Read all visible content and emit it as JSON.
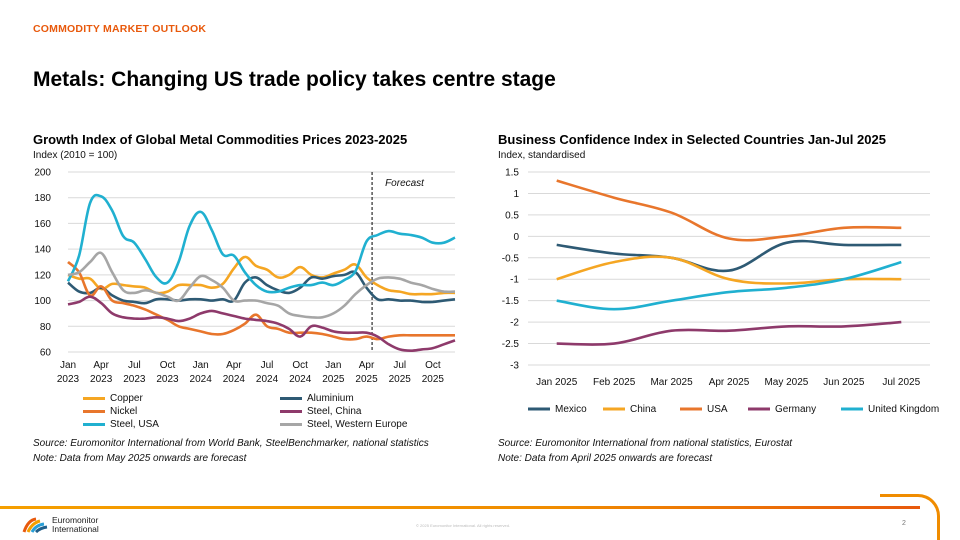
{
  "header": {
    "kicker": "COMMODITY MARKET OUTLOOK",
    "title": "Metals: Changing US trade policy takes centre stage"
  },
  "left_chart": {
    "title": "Growth Index of Global Metal Commodities Prices 2023-2025",
    "subtitle": "Index (2010 = 100)",
    "forecast_label": "Forecast",
    "source": "Source: Euromonitor International from World Bank, SteelBenchmarker, national statistics",
    "note": "Note: Data from May 2025 onwards are forecast"
  },
  "right_chart": {
    "title": "Business Confidence Index in Selected Countries Jan-Jul 2025",
    "subtitle": "Index, standardised",
    "source": "Source: Euromonitor International from national statistics, Eurostat",
    "note": "Note: Data from April 2025 onwards are forecast"
  },
  "footer": {
    "logo_line1": "Euromonitor",
    "logo_line2": "International",
    "copyright": "© 2025 Euromonitor International. All rights reserved.",
    "page_number": "2"
  },
  "colors": {
    "accent": "#e8590c",
    "copper": "#f5a623",
    "aluminium": "#2e5a74",
    "nickel": "#e8762c",
    "steel_china": "#8e3a6b",
    "steel_usa": "#20b0d0",
    "steel_we": "#a6a6a6"
  },
  "chart_data": [
    {
      "type": "line",
      "title": "Growth Index of Global Metal Commodities Prices 2023-2025",
      "ylabel": "Index (2010 = 100)",
      "ylim": [
        60,
        200
      ],
      "yticks": [
        60,
        80,
        100,
        120,
        140,
        160,
        180,
        200
      ],
      "x_tick_labels": [
        [
          "Jan",
          "2023"
        ],
        [
          "Apr",
          "2023"
        ],
        [
          "Jul",
          "2023"
        ],
        [
          "Oct",
          "2023"
        ],
        [
          "Jan",
          "2024"
        ],
        [
          "Apr",
          "2024"
        ],
        [
          "Jul",
          "2024"
        ],
        [
          "Oct",
          "2024"
        ],
        [
          "Jan",
          "2025"
        ],
        [
          "Apr",
          "2025"
        ],
        [
          "Jul",
          "2025"
        ],
        [
          "Oct",
          "2025"
        ]
      ],
      "forecast_from_month": "May 2025",
      "months": [
        "Jan 2023",
        "Feb 2023",
        "Mar 2023",
        "Apr 2023",
        "May 2023",
        "Jun 2023",
        "Jul 2023",
        "Aug 2023",
        "Sep 2023",
        "Oct 2023",
        "Nov 2023",
        "Dec 2023",
        "Jan 2024",
        "Feb 2024",
        "Mar 2024",
        "Apr 2024",
        "May 2024",
        "Jun 2024",
        "Jul 2024",
        "Aug 2024",
        "Sep 2024",
        "Oct 2024",
        "Nov 2024",
        "Dec 2024",
        "Jan 2025",
        "Feb 2025",
        "Mar 2025",
        "Apr 2025",
        "May 2025",
        "Jun 2025",
        "Jul 2025",
        "Aug 2025",
        "Sep 2025",
        "Oct 2025",
        "Nov 2025",
        "Dec 2025"
      ],
      "series": [
        {
          "name": "Copper",
          "color": "#f5a623",
          "values": [
            120,
            117,
            117,
            109,
            113,
            112,
            111,
            110,
            106,
            107,
            112,
            112,
            112,
            110,
            113,
            125,
            134,
            127,
            124,
            118,
            120,
            126,
            120,
            118,
            121,
            124,
            128,
            118,
            112,
            108,
            107,
            105,
            105,
            105,
            106,
            106
          ]
        },
        {
          "name": "Aluminium",
          "color": "#2e5a74",
          "values": [
            114,
            107,
            106,
            110,
            104,
            100,
            99,
            98,
            101,
            101,
            100,
            101,
            101,
            100,
            101,
            100,
            114,
            118,
            112,
            108,
            106,
            110,
            118,
            117,
            119,
            120,
            122,
            110,
            101,
            101,
            100,
            100,
            99,
            99,
            100,
            101
          ]
        },
        {
          "name": "Nickel",
          "color": "#e8762c",
          "values": [
            130,
            122,
            104,
            111,
            100,
            98,
            96,
            93,
            89,
            85,
            80,
            78,
            76,
            74,
            74,
            77,
            82,
            89,
            80,
            78,
            75,
            75,
            75,
            74,
            72,
            70,
            70,
            72,
            70,
            72,
            73,
            73,
            73,
            73,
            73,
            73
          ]
        },
        {
          "name": "Steel, China",
          "color": "#8e3a6b",
          "values": [
            97,
            99,
            103,
            98,
            90,
            87,
            86,
            86,
            87,
            86,
            84,
            86,
            90,
            92,
            90,
            88,
            86,
            85,
            84,
            82,
            78,
            72,
            80,
            79,
            76,
            75,
            75,
            75,
            72,
            66,
            62,
            61,
            62,
            63,
            66,
            69
          ]
        },
        {
          "name": "Steel, USA",
          "color": "#20b0d0",
          "values": [
            115,
            135,
            176,
            181,
            170,
            150,
            145,
            132,
            118,
            114,
            130,
            158,
            169,
            155,
            136,
            135,
            122,
            112,
            107,
            107,
            110,
            112,
            112,
            114,
            112,
            116,
            123,
            146,
            151,
            154,
            152,
            151,
            149,
            145,
            145,
            149
          ]
        },
        {
          "name": "Steel, Western Europe",
          "color": "#a6a6a6",
          "values": [
            120,
            122,
            130,
            137,
            122,
            108,
            106,
            108,
            106,
            103,
            100,
            110,
            119,
            116,
            110,
            100,
            100,
            100,
            98,
            96,
            90,
            88,
            87,
            87,
            90,
            96,
            105,
            112,
            117,
            118,
            117,
            114,
            112,
            109,
            107,
            107
          ]
        }
      ]
    },
    {
      "type": "line",
      "title": "Business Confidence Index in Selected Countries Jan-Jul 2025",
      "ylabel": "Index, standardised",
      "ylim": [
        -3,
        1.5
      ],
      "yticks": [
        1.5,
        1,
        0.5,
        0,
        -0.5,
        -1,
        -1.5,
        -2,
        -2.5,
        -3
      ],
      "ytick_labels": [
        "1.5",
        "1",
        "0.5",
        "0",
        "-0.5",
        "-1",
        "-1.5",
        "-2",
        "-2.5",
        "-3"
      ],
      "categories": [
        "Jan 2025",
        "Feb 2025",
        "Mar 2025",
        "Apr 2025",
        "May 2025",
        "Jun 2025",
        "Jul 2025"
      ],
      "forecast_from": "Apr 2025",
      "series": [
        {
          "name": "Mexico",
          "color": "#2e5a74",
          "values": [
            -0.2,
            -0.4,
            -0.5,
            -0.8,
            -0.15,
            -0.2,
            -0.2
          ]
        },
        {
          "name": "China",
          "color": "#f5a623",
          "values": [
            -1.0,
            -0.6,
            -0.5,
            -1.0,
            -1.1,
            -1.0,
            -1.0
          ]
        },
        {
          "name": "USA",
          "color": "#e8762c",
          "values": [
            1.3,
            0.9,
            0.55,
            -0.05,
            0.0,
            0.2,
            0.2
          ]
        },
        {
          "name": "Germany",
          "color": "#8e3a6b",
          "values": [
            -2.5,
            -2.5,
            -2.2,
            -2.2,
            -2.1,
            -2.1,
            -2.0
          ]
        },
        {
          "name": "United Kingdom",
          "color": "#20b0d0",
          "values": [
            -1.5,
            -1.7,
            -1.5,
            -1.3,
            -1.2,
            -1.0,
            -0.6
          ]
        }
      ]
    }
  ]
}
